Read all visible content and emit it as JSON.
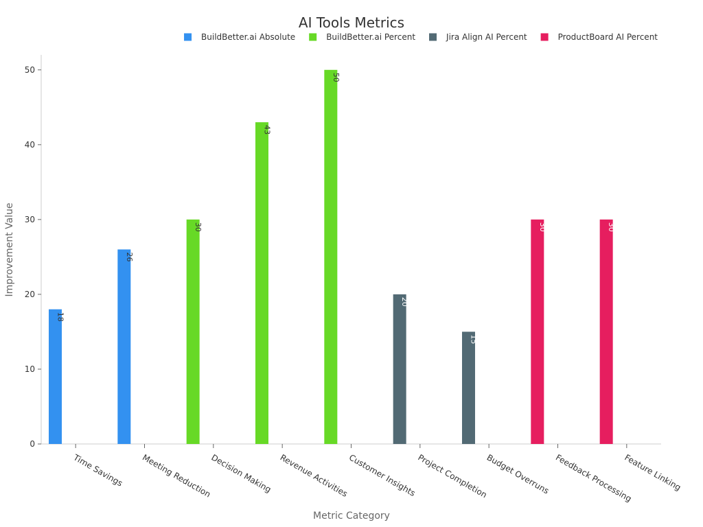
{
  "chart_data": {
    "type": "bar",
    "title": "AI Tools Metrics",
    "xlabel": "Metric Category",
    "ylabel": "Improvement Value",
    "ylim": [
      0,
      52
    ],
    "yticks": [
      0,
      10,
      20,
      30,
      40,
      50
    ],
    "categories": [
      "Time Savings",
      "Meeting Reduction",
      "Decision Making",
      "Revenue Activities",
      "Customer Insights",
      "Project Completion",
      "Budget Overruns",
      "Feedback Processing",
      "Feature Linking"
    ],
    "series": [
      {
        "name": "BuildBetter.ai Absolute",
        "color": "#3391f0",
        "label_color": "#333333",
        "values": [
          18,
          26,
          null,
          null,
          null,
          null,
          null,
          null,
          null
        ]
      },
      {
        "name": "BuildBetter.ai Percent",
        "color": "#67d926",
        "label_color": "#333333",
        "values": [
          null,
          null,
          30,
          43,
          50,
          null,
          null,
          null,
          null
        ]
      },
      {
        "name": "Jira Align AI Percent",
        "color": "#526a74",
        "label_color": "#ffffff",
        "values": [
          null,
          null,
          null,
          null,
          null,
          20,
          15,
          null,
          null
        ]
      },
      {
        "name": "ProductBoard AI Percent",
        "color": "#e61e5f",
        "label_color": "#ffffff",
        "values": [
          null,
          null,
          null,
          null,
          null,
          null,
          null,
          30,
          30
        ]
      }
    ],
    "legend_position": "top-right",
    "grid": false
  }
}
